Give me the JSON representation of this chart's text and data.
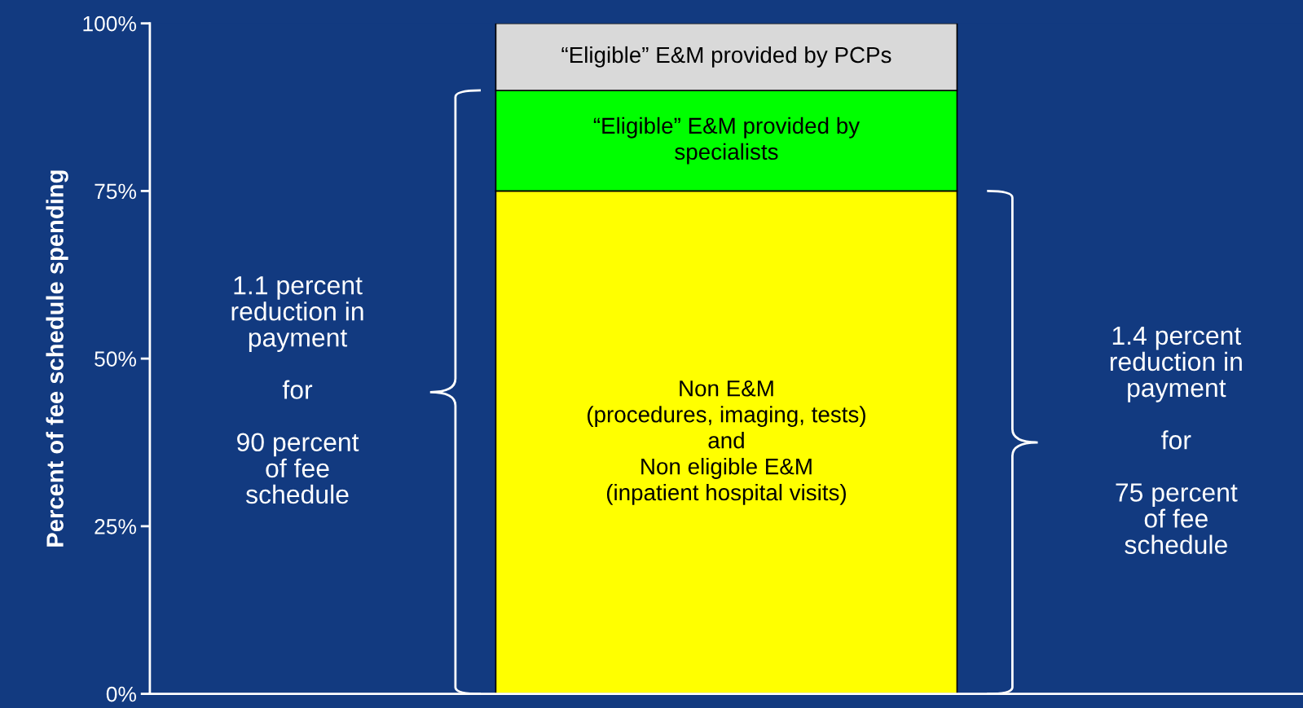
{
  "chart_data": {
    "type": "bar",
    "stacked": true,
    "categories": [
      null
    ],
    "ylabel": "Percent of fee schedule spending",
    "series": [
      {
        "name": "Non E&M\n(procedures, imaging, tests)\nand\nNon eligible E&M\n(inpatient hospital visits)",
        "color": "#ffff00",
        "values": [
          75
        ]
      },
      {
        "name": "“Eligible” E&M provided by\nspecialists",
        "color": "#00ff00",
        "values": [
          15
        ]
      },
      {
        "name": "“Eligible” E&M provided by PCPs",
        "color": "#d9d9d9",
        "values": [
          10
        ]
      }
    ],
    "ylim": [
      0,
      100
    ],
    "yticks": [
      {
        "value": 0,
        "label": "0%"
      },
      {
        "value": 25,
        "label": "25%"
      },
      {
        "value": 50,
        "label": "50%"
      },
      {
        "value": 75,
        "label": "75%"
      },
      {
        "value": 100,
        "label": "100%"
      }
    ],
    "annotations": [
      "1.1 percent\nreduction in\npayment\n\nfor\n\n90 percent\nof fee\nschedule",
      "1.4 percent\nreduction in\npayment\n\nfor\n\n75 percent\nof fee\nschedule"
    ],
    "grid": false,
    "legend": false
  }
}
